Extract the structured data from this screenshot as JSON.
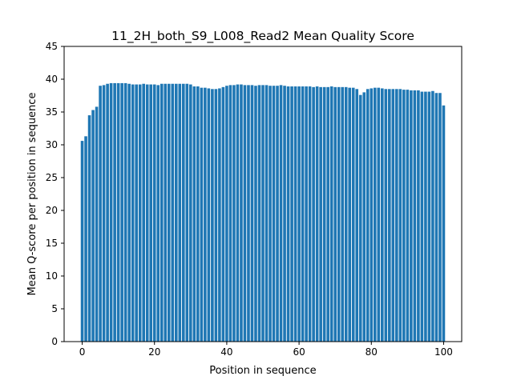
{
  "chart_data": {
    "type": "bar",
    "title": "11_2H_both_S9_L008_Read2 Mean Quality Score",
    "xlabel": "Position in sequence",
    "ylabel": "Mean Q-score per position in sequence",
    "xlim": [
      -5,
      105
    ],
    "ylim": [
      0,
      45
    ],
    "xticks": [
      0,
      20,
      40,
      60,
      80,
      100
    ],
    "yticks": [
      0,
      5,
      10,
      15,
      20,
      25,
      30,
      35,
      40,
      45
    ],
    "grid": false,
    "bar_color": "#1f77b4",
    "x": [
      0,
      1,
      2,
      3,
      4,
      5,
      6,
      7,
      8,
      9,
      10,
      11,
      12,
      13,
      14,
      15,
      16,
      17,
      18,
      19,
      20,
      21,
      22,
      23,
      24,
      25,
      26,
      27,
      28,
      29,
      30,
      31,
      32,
      33,
      34,
      35,
      36,
      37,
      38,
      39,
      40,
      41,
      42,
      43,
      44,
      45,
      46,
      47,
      48,
      49,
      50,
      51,
      52,
      53,
      54,
      55,
      56,
      57,
      58,
      59,
      60,
      61,
      62,
      63,
      64,
      65,
      66,
      67,
      68,
      69,
      70,
      71,
      72,
      73,
      74,
      75,
      76,
      77,
      78,
      79,
      80,
      81,
      82,
      83,
      84,
      85,
      86,
      87,
      88,
      89,
      90,
      91,
      92,
      93,
      94,
      95,
      96,
      97,
      98,
      99,
      100
    ],
    "values": [
      30.6,
      31.3,
      34.5,
      35.3,
      35.8,
      39.0,
      39.1,
      39.3,
      39.4,
      39.4,
      39.4,
      39.4,
      39.4,
      39.3,
      39.2,
      39.2,
      39.2,
      39.3,
      39.2,
      39.2,
      39.2,
      39.1,
      39.3,
      39.3,
      39.3,
      39.3,
      39.3,
      39.3,
      39.3,
      39.3,
      39.2,
      38.9,
      38.9,
      38.7,
      38.7,
      38.6,
      38.5,
      38.5,
      38.6,
      38.8,
      39.0,
      39.1,
      39.1,
      39.2,
      39.2,
      39.1,
      39.1,
      39.1,
      39.0,
      39.1,
      39.1,
      39.1,
      39.0,
      39.0,
      39.0,
      39.1,
      39.0,
      38.9,
      38.9,
      38.9,
      38.9,
      38.9,
      38.9,
      38.9,
      38.8,
      38.9,
      38.8,
      38.8,
      38.8,
      38.9,
      38.8,
      38.8,
      38.8,
      38.8,
      38.7,
      38.7,
      38.5,
      37.6,
      38.0,
      38.5,
      38.6,
      38.7,
      38.7,
      38.6,
      38.5,
      38.5,
      38.5,
      38.5,
      38.5,
      38.4,
      38.4,
      38.3,
      38.3,
      38.3,
      38.1,
      38.1,
      38.1,
      38.2,
      37.9,
      37.9,
      36.0
    ]
  }
}
